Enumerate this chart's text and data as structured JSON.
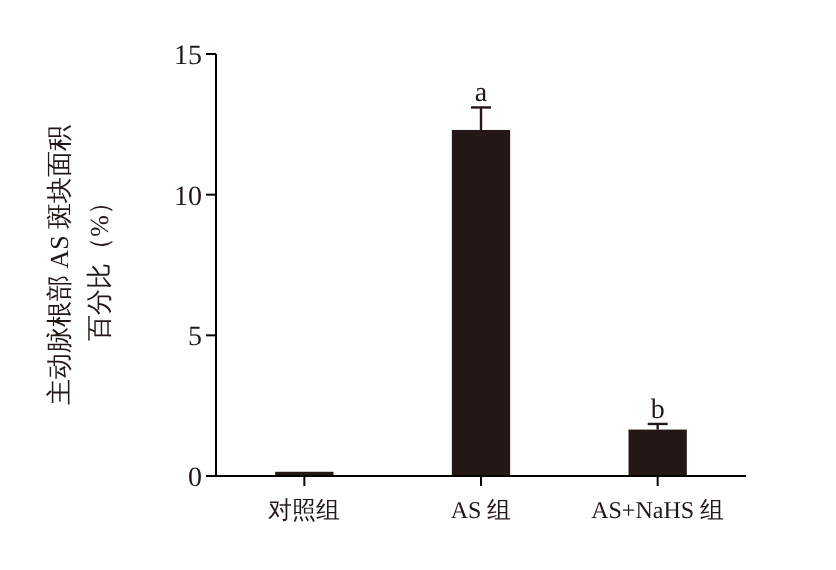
{
  "chart_data": {
    "type": "bar",
    "categories": [
      "对照组",
      "AS 组",
      "AS+NaHS 组"
    ],
    "values": [
      0.15,
      12.3,
      1.65
    ],
    "errors": [
      null,
      0.8,
      0.2
    ],
    "color": "#231815",
    "ylabel": "主动脉根部 AS 斑块面积百分比（%）",
    "ylim": [
      0,
      15
    ],
    "yticks": [
      0,
      5,
      10,
      15
    ],
    "annotations": [
      {
        "text": "a",
        "x": "AS 组",
        "y": 13.1
      },
      {
        "text": "b",
        "x": "AS+NaHS 组",
        "y": 1.85
      }
    ],
    "grid": false
  }
}
